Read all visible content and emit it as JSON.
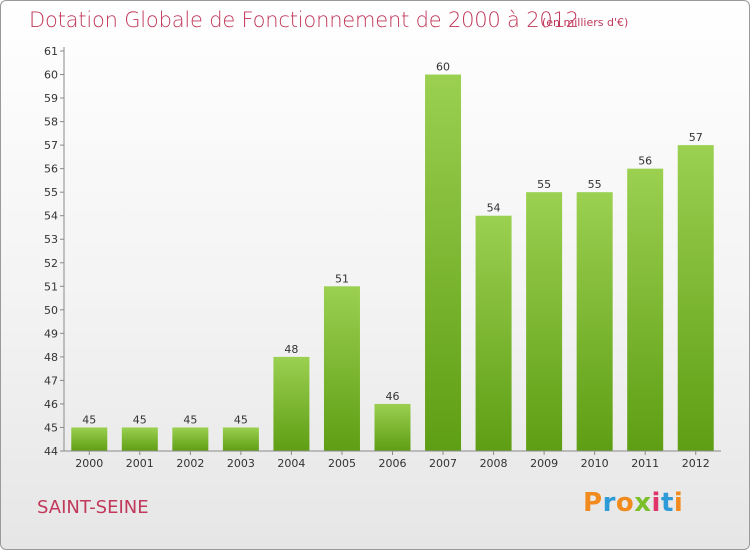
{
  "header": {
    "title": "Dotation Globale de Fonctionnement de 2000 à 2012",
    "unit": "(en milliers d'€)"
  },
  "footer": {
    "commune": "SAINT-SEINE",
    "logo_letters": [
      "P",
      "r",
      "o",
      "x",
      "i",
      "t",
      "i"
    ],
    "logo_colors": [
      "#f28b1d",
      "#2f9ad8",
      "#f28b1d",
      "#7bbf2a",
      "#e0356b",
      "#2f9ad8",
      "#f28b1d"
    ]
  },
  "colors": {
    "bar_top": "#9bd051",
    "bar_bottom": "#5e9e14",
    "text": "#333333",
    "accent": "#c0385a"
  },
  "chart_data": {
    "type": "bar",
    "categories": [
      "2000",
      "2001",
      "2002",
      "2003",
      "2004",
      "2005",
      "2006",
      "2007",
      "2008",
      "2009",
      "2010",
      "2011",
      "2012"
    ],
    "values": [
      45,
      45,
      45,
      45,
      48,
      51,
      46,
      60,
      54,
      55,
      55,
      56,
      57
    ],
    "ylim": [
      44,
      61
    ],
    "yticks": [
      44,
      45,
      46,
      47,
      48,
      49,
      50,
      51,
      52,
      53,
      54,
      55,
      56,
      57,
      58,
      59,
      60,
      61
    ],
    "grid": false,
    "data_labels": true
  }
}
